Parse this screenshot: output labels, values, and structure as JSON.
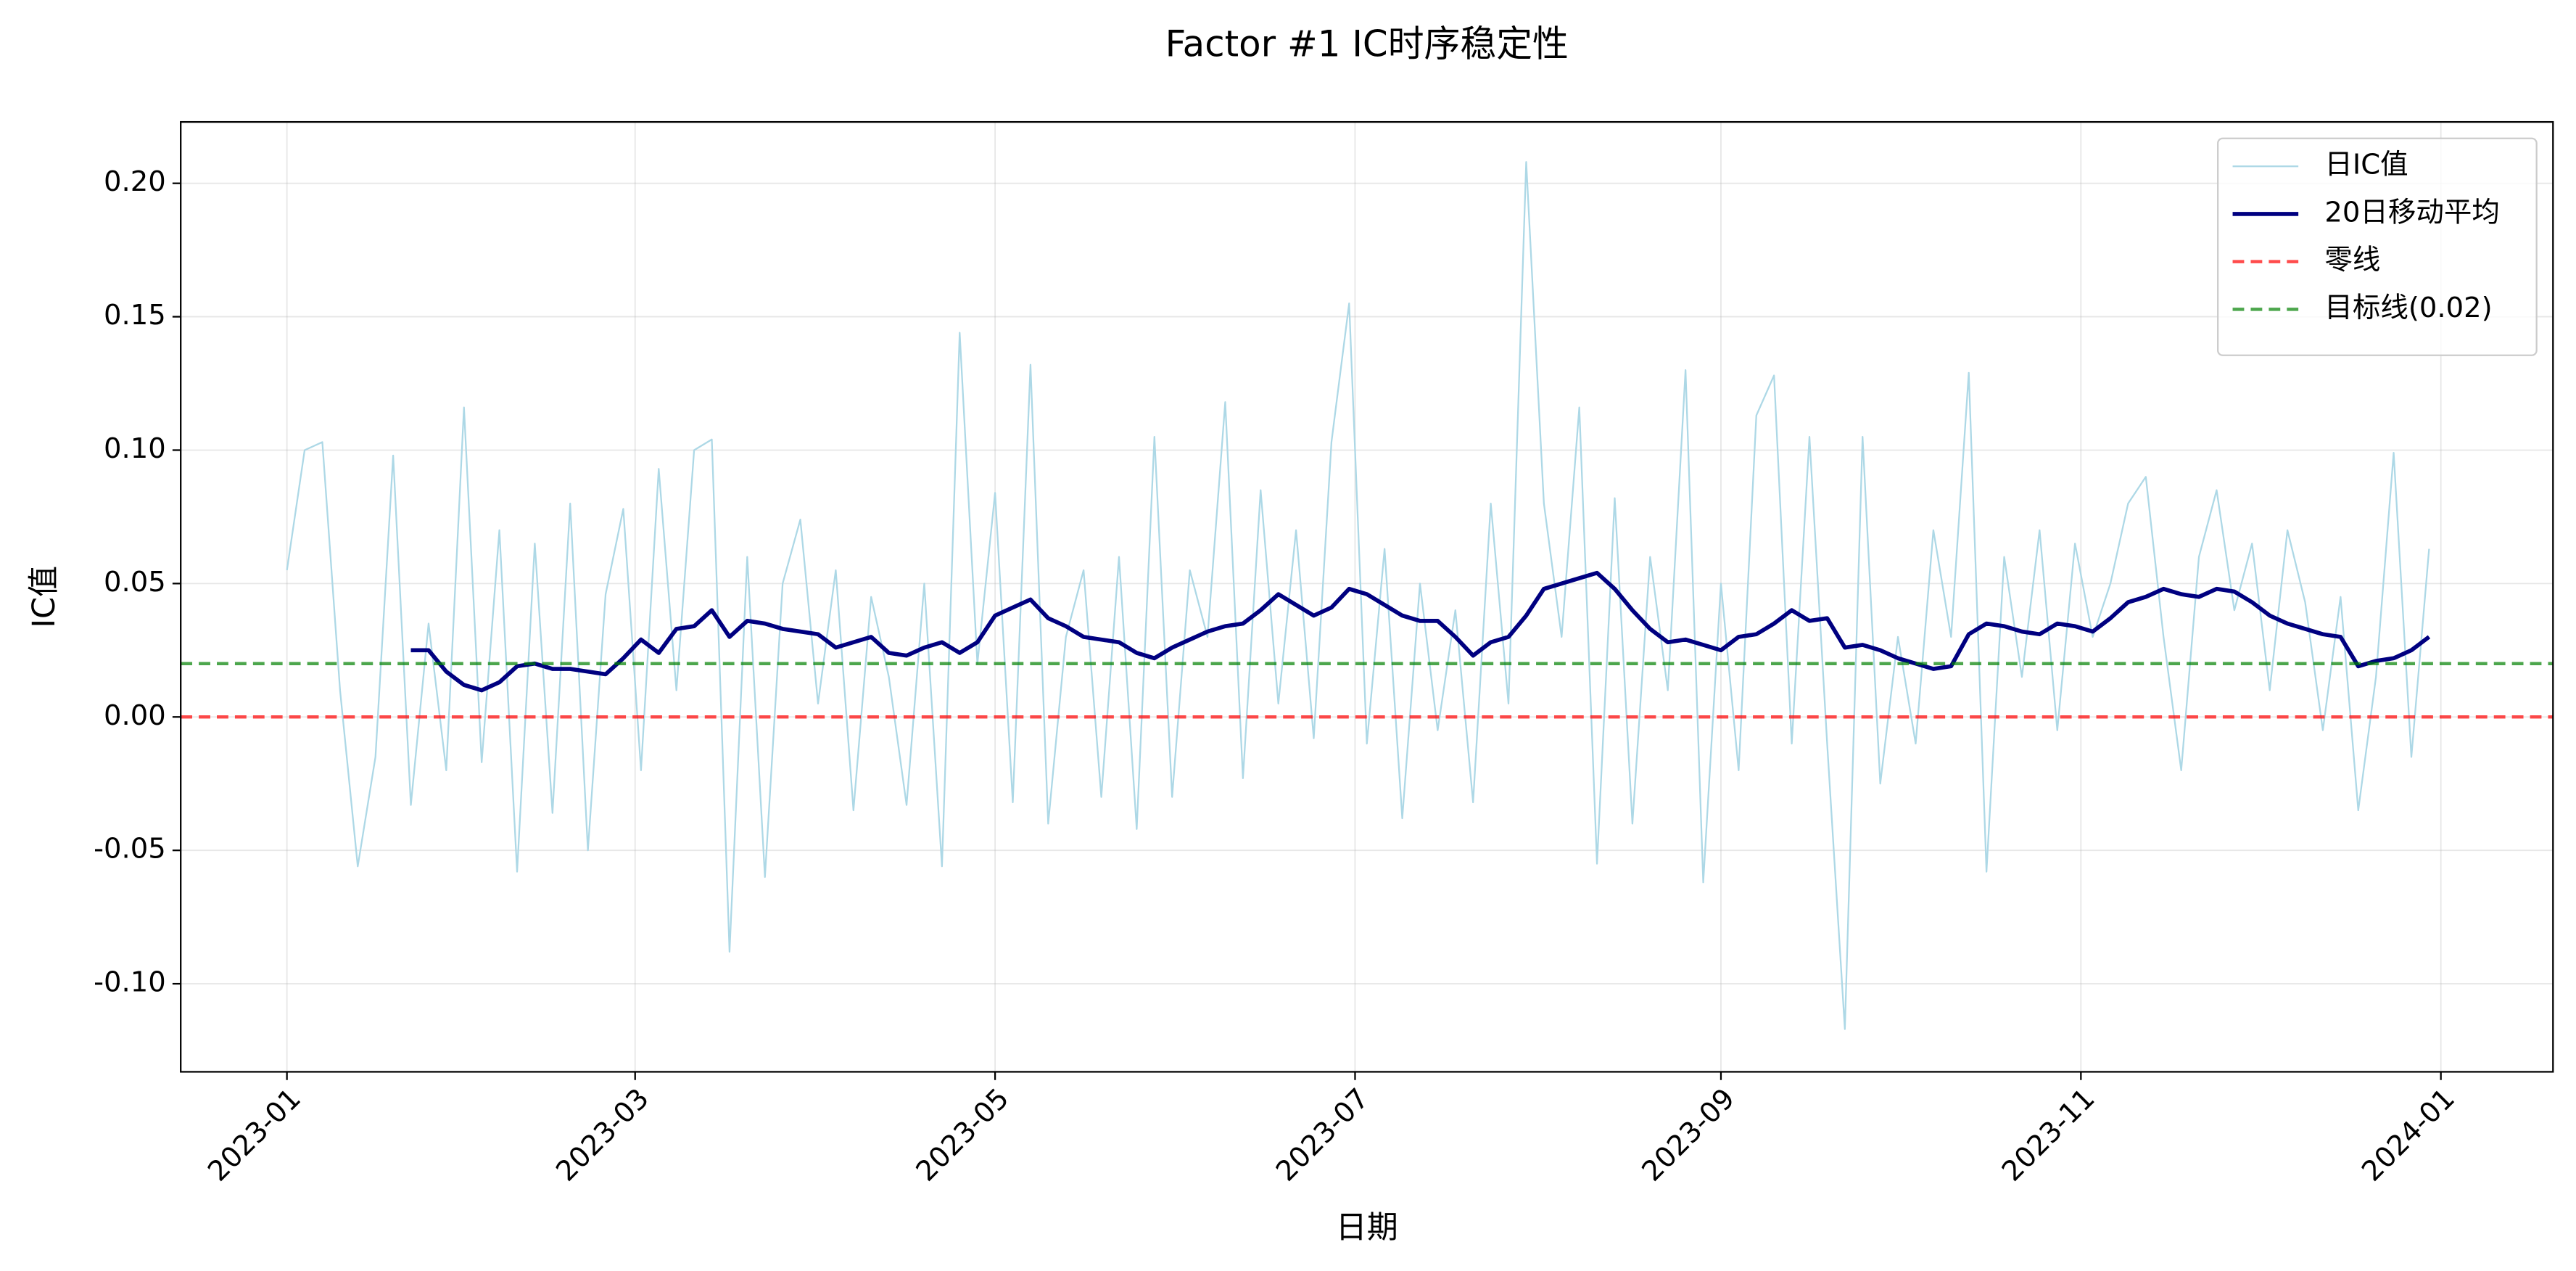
{
  "chart_data": {
    "type": "line",
    "title": "Factor #1 IC时序稳定性",
    "x_label": "日期",
    "y_label": "IC值",
    "x": [
      0,
      3,
      6,
      9,
      12,
      15,
      18,
      21,
      24,
      27,
      30,
      33,
      36,
      39,
      42,
      45,
      48,
      51,
      54,
      57,
      60,
      63,
      66,
      69,
      72,
      75,
      78,
      81,
      84,
      87,
      90,
      93,
      96,
      99,
      102,
      105,
      108,
      111,
      114,
      117,
      120,
      123,
      126,
      129,
      132,
      135,
      138,
      141,
      144,
      147,
      150,
      153,
      156,
      159,
      162,
      165,
      168,
      171,
      174,
      177,
      180,
      183,
      186,
      189,
      192,
      195,
      198,
      201,
      204,
      207,
      210,
      213,
      216,
      219,
      222,
      225,
      228,
      231,
      234,
      237,
      240,
      243,
      246,
      249,
      252,
      255,
      258,
      261,
      264,
      267,
      270,
      273,
      276,
      279,
      282,
      285,
      288,
      291,
      294,
      297,
      300,
      303,
      306,
      309,
      312,
      315,
      318,
      321,
      324,
      327,
      330,
      333,
      336,
      339,
      342,
      345,
      348,
      351,
      354,
      357,
      360,
      363
    ],
    "series": [
      {
        "name": "日IC值",
        "color": "#add8e6",
        "width": 1,
        "values": [
          0.055,
          0.1,
          0.103,
          0.01,
          -0.056,
          -0.015,
          0.098,
          -0.033,
          0.035,
          -0.02,
          0.116,
          -0.017,
          0.07,
          -0.058,
          0.065,
          -0.036,
          0.08,
          -0.05,
          0.046,
          0.078,
          -0.02,
          0.093,
          0.01,
          0.1,
          0.104,
          -0.088,
          0.06,
          -0.06,
          0.05,
          0.074,
          0.005,
          0.055,
          -0.035,
          0.045,
          0.015,
          -0.033,
          0.05,
          -0.056,
          0.144,
          0.02,
          0.084,
          -0.032,
          0.132,
          -0.04,
          0.03,
          0.055,
          -0.03,
          0.06,
          -0.042,
          0.105,
          -0.03,
          0.055,
          0.03,
          0.118,
          -0.023,
          0.085,
          0.005,
          0.07,
          -0.008,
          0.103,
          0.155,
          -0.01,
          0.063,
          -0.038,
          0.05,
          -0.005,
          0.04,
          -0.032,
          0.08,
          0.005,
          0.208,
          0.08,
          0.03,
          0.116,
          -0.055,
          0.082,
          -0.04,
          0.06,
          0.01,
          0.13,
          -0.062,
          0.05,
          -0.02,
          0.113,
          0.128,
          -0.01,
          0.105,
          -0.01,
          -0.117,
          0.105,
          -0.025,
          0.03,
          -0.01,
          0.07,
          0.03,
          0.129,
          -0.058,
          0.06,
          0.015,
          0.07,
          -0.005,
          0.065,
          0.03,
          0.05,
          0.08,
          0.09,
          0.03,
          -0.02,
          0.06,
          0.085,
          0.04,
          0.065,
          0.01,
          0.07,
          0.043,
          -0.005,
          0.045,
          -0.035,
          0.015,
          0.099,
          -0.015,
          0.063
        ]
      },
      {
        "name": "20日移动平均",
        "color": "#000080",
        "width": 2.5,
        "values": [
          null,
          null,
          null,
          null,
          null,
          null,
          null,
          0.025,
          0.025,
          0.017,
          0.012,
          0.01,
          0.013,
          0.019,
          0.02,
          0.018,
          0.018,
          0.017,
          0.016,
          0.022,
          0.029,
          0.024,
          0.033,
          0.034,
          0.04,
          0.03,
          0.036,
          0.035,
          0.033,
          0.032,
          0.031,
          0.026,
          0.028,
          0.03,
          0.024,
          0.023,
          0.026,
          0.028,
          0.024,
          0.028,
          0.038,
          0.041,
          0.044,
          0.037,
          0.034,
          0.03,
          0.029,
          0.028,
          0.024,
          0.022,
          0.026,
          0.029,
          0.032,
          0.034,
          0.035,
          0.04,
          0.046,
          0.042,
          0.038,
          0.041,
          0.048,
          0.046,
          0.042,
          0.038,
          0.036,
          0.036,
          0.03,
          0.023,
          0.028,
          0.03,
          0.038,
          0.048,
          0.05,
          0.052,
          0.054,
          0.048,
          0.04,
          0.033,
          0.028,
          0.029,
          0.027,
          0.025,
          0.03,
          0.031,
          0.035,
          0.04,
          0.036,
          0.037,
          0.026,
          0.027,
          0.025,
          0.022,
          0.02,
          0.018,
          0.019,
          0.031,
          0.035,
          0.034,
          0.032,
          0.031,
          0.035,
          0.034,
          0.032,
          0.037,
          0.043,
          0.045,
          0.048,
          0.046,
          0.045,
          0.048,
          0.047,
          0.043,
          0.038,
          0.035,
          0.033,
          0.031,
          0.03,
          0.019,
          0.021,
          0.022,
          0.025,
          0.03
        ]
      }
    ],
    "hlines": [
      {
        "name": "零线",
        "value": 0,
        "color": "#ff0000"
      },
      {
        "name": "目标线(0.02)",
        "value": 0.02,
        "color": "#008000"
      }
    ],
    "xlim": [
      -18,
      384
    ],
    "xticks": [
      {
        "value": 0,
        "label": "2023-01"
      },
      {
        "value": 59,
        "label": "2023-03"
      },
      {
        "value": 120,
        "label": "2023-05"
      },
      {
        "value": 181,
        "label": "2023-07"
      },
      {
        "value": 243,
        "label": "2023-09"
      },
      {
        "value": 304,
        "label": "2023-11"
      },
      {
        "value": 365,
        "label": "2024-01"
      }
    ],
    "ylim": [
      -0.133,
      0.223
    ],
    "yticks": [
      {
        "value": -0.1,
        "label": "-0.10"
      },
      -0.05,
      {
        "value": 0,
        "label": "0.00"
      },
      0.05,
      {
        "value": 0.1,
        "label": "0.10"
      },
      0.15,
      {
        "value": 0.2,
        "label": "0.20"
      }
    ],
    "grid": true,
    "legend": "upper right"
  }
}
